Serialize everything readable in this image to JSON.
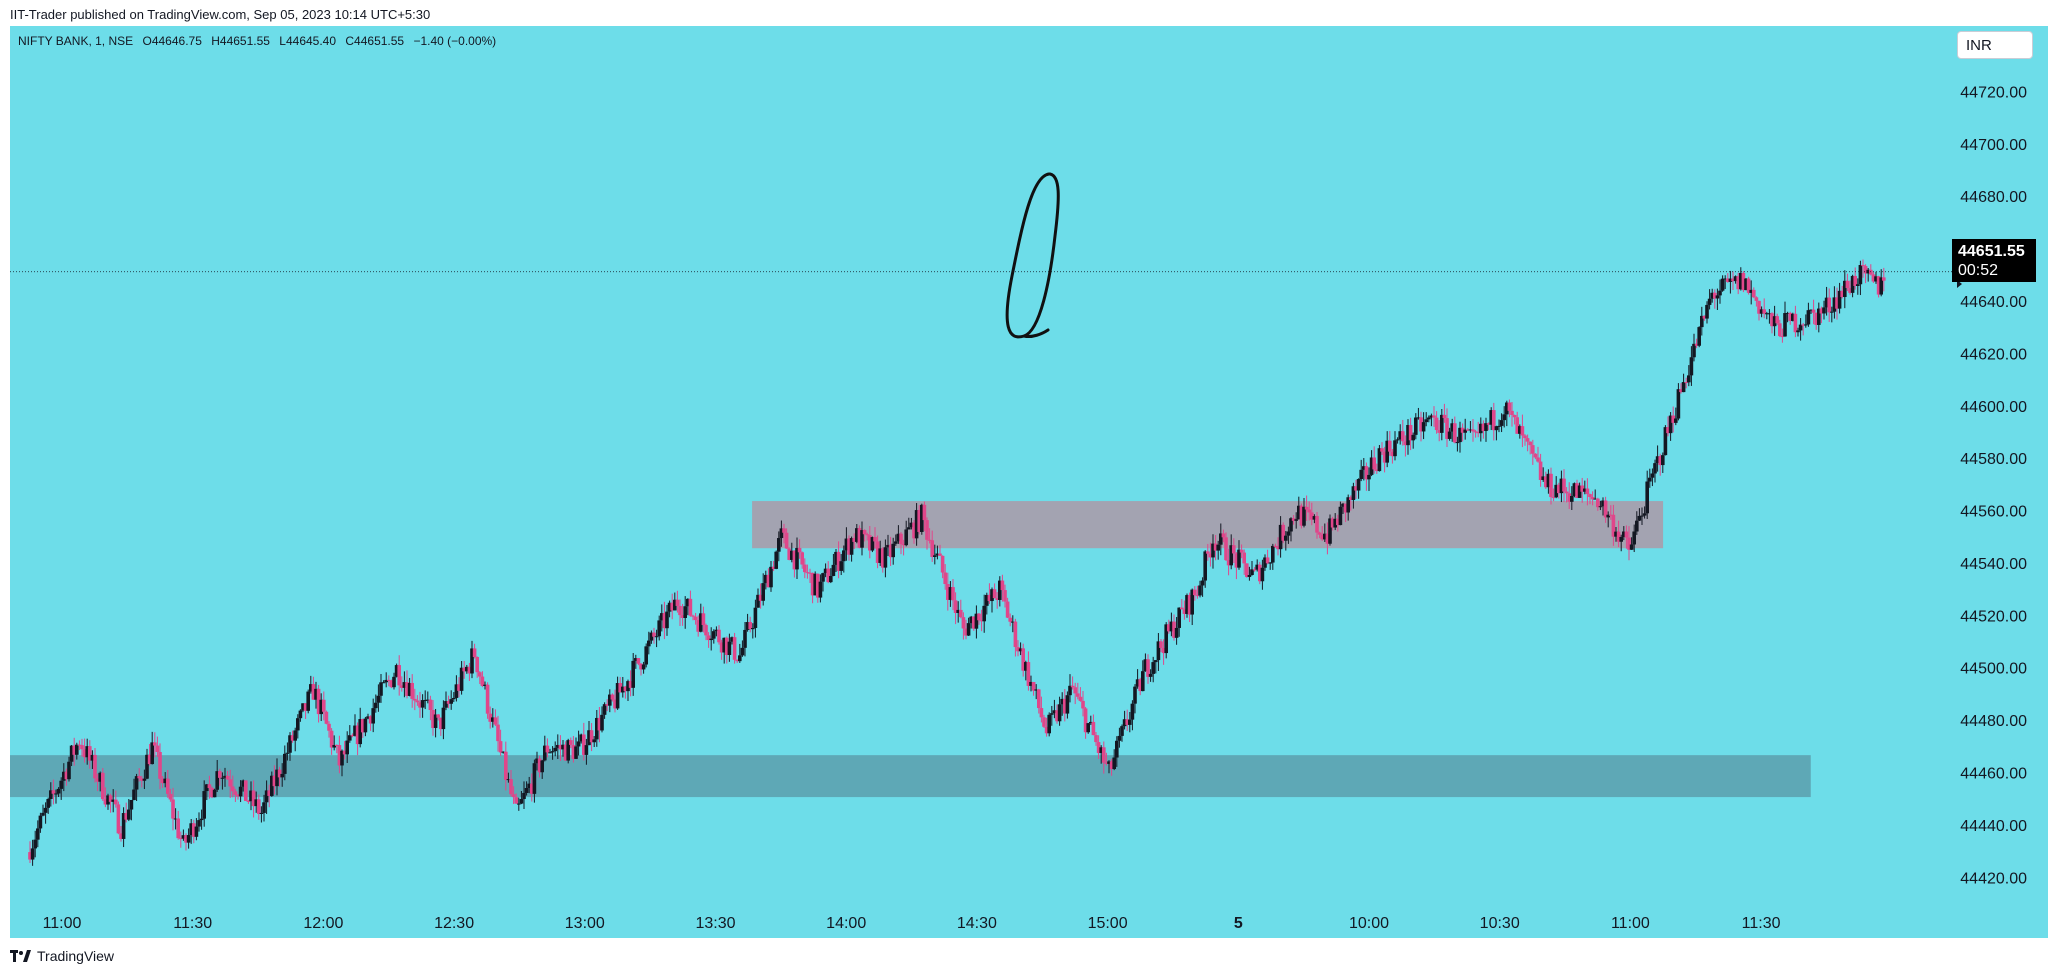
{
  "header": {
    "publisher_text": "IIT-Trader published on TradingView.com, Sep 05, 2023 10:14 UTC+5:30"
  },
  "legend": {
    "symbol": "NIFTY BANK, 1, NSE",
    "open": "O44646.75",
    "high": "H44651.55",
    "low": "L44645.40",
    "close": "C44651.55",
    "change": "−1.40 (−0.00%)"
  },
  "currency_button": "INR",
  "price_badge": {
    "price": "44651.55",
    "countdown": "00:52"
  },
  "footer": {
    "logo_text": "TradingView",
    "logo_icon": "tradingview-logo-icon"
  },
  "colors": {
    "background": "#6ddde9",
    "up": "#131722",
    "down": "#e0468a",
    "zone_upper": "#a3a3b1",
    "zone_lower": "#5ea8b6"
  },
  "chart_data": {
    "type": "candlestick",
    "symbol": "NIFTY BANK",
    "interval": "1",
    "exchange": "NSE",
    "last_price": 44651.55,
    "ylim": [
      44414,
      44732
    ],
    "y_ticks": [
      "44420.00",
      "44440.00",
      "44460.00",
      "44480.00",
      "44500.00",
      "44520.00",
      "44540.00",
      "44560.00",
      "44580.00",
      "44600.00",
      "44620.00",
      "44640.00",
      "44660.00",
      "44680.00",
      "44700.00",
      "44720.00"
    ],
    "x_ticks": [
      {
        "label": "11:00",
        "bold": false
      },
      {
        "label": "11:30",
        "bold": false
      },
      {
        "label": "12:00",
        "bold": false
      },
      {
        "label": "12:30",
        "bold": false
      },
      {
        "label": "13:00",
        "bold": false
      },
      {
        "label": "13:30",
        "bold": false
      },
      {
        "label": "14:00",
        "bold": false
      },
      {
        "label": "14:30",
        "bold": false
      },
      {
        "label": "15:00",
        "bold": false
      },
      {
        "label": "5",
        "bold": true
      },
      {
        "label": "10:00",
        "bold": false
      },
      {
        "label": "10:30",
        "bold": false
      },
      {
        "label": "11:00",
        "bold": false
      },
      {
        "label": "11:30",
        "bold": false
      }
    ],
    "zones": [
      {
        "from": 44546,
        "to": 44564,
        "start_tick": 5.28,
        "end_tick": 12.25,
        "color": "#a3a3b1"
      },
      {
        "from": 44451,
        "to": 44467,
        "start_tick": -0.4,
        "end_tick": 13.38,
        "color": "#5ea8b6"
      }
    ],
    "path": [
      [
        0,
        44430
      ],
      [
        20,
        44473
      ],
      [
        36,
        44440
      ],
      [
        48,
        44470
      ],
      [
        60,
        44432
      ],
      [
        74,
        44462
      ],
      [
        90,
        44445
      ],
      [
        110,
        44492
      ],
      [
        120,
        44464
      ],
      [
        142,
        44500
      ],
      [
        158,
        44478
      ],
      [
        172,
        44506
      ],
      [
        188,
        44444
      ],
      [
        200,
        44470
      ],
      [
        212,
        44469
      ],
      [
        226,
        44488
      ],
      [
        250,
        44526
      ],
      [
        274,
        44505
      ],
      [
        290,
        44550
      ],
      [
        304,
        44530
      ],
      [
        318,
        44551
      ],
      [
        330,
        44542
      ],
      [
        344,
        44558
      ],
      [
        360,
        44515
      ],
      [
        374,
        44530
      ],
      [
        392,
        44476
      ],
      [
        402,
        44492
      ],
      [
        416,
        44460
      ],
      [
        430,
        44500
      ],
      [
        450,
        44530
      ],
      [
        456,
        44550
      ],
      [
        472,
        44535
      ],
      [
        488,
        44560
      ],
      [
        500,
        44551
      ],
      [
        520,
        44582
      ],
      [
        540,
        44595
      ],
      [
        556,
        44586
      ],
      [
        568,
        44600
      ],
      [
        584,
        44570
      ],
      [
        604,
        44565
      ],
      [
        616,
        44545
      ],
      [
        628,
        44582
      ],
      [
        648,
        44643
      ],
      [
        660,
        44648
      ],
      [
        672,
        44630
      ],
      [
        690,
        44636
      ],
      [
        704,
        44650
      ],
      [
        712,
        44646
      ],
      [
        714,
        44651.55
      ]
    ],
    "annotation": "hand-drawn ellipse around the rally near 09:40"
  }
}
